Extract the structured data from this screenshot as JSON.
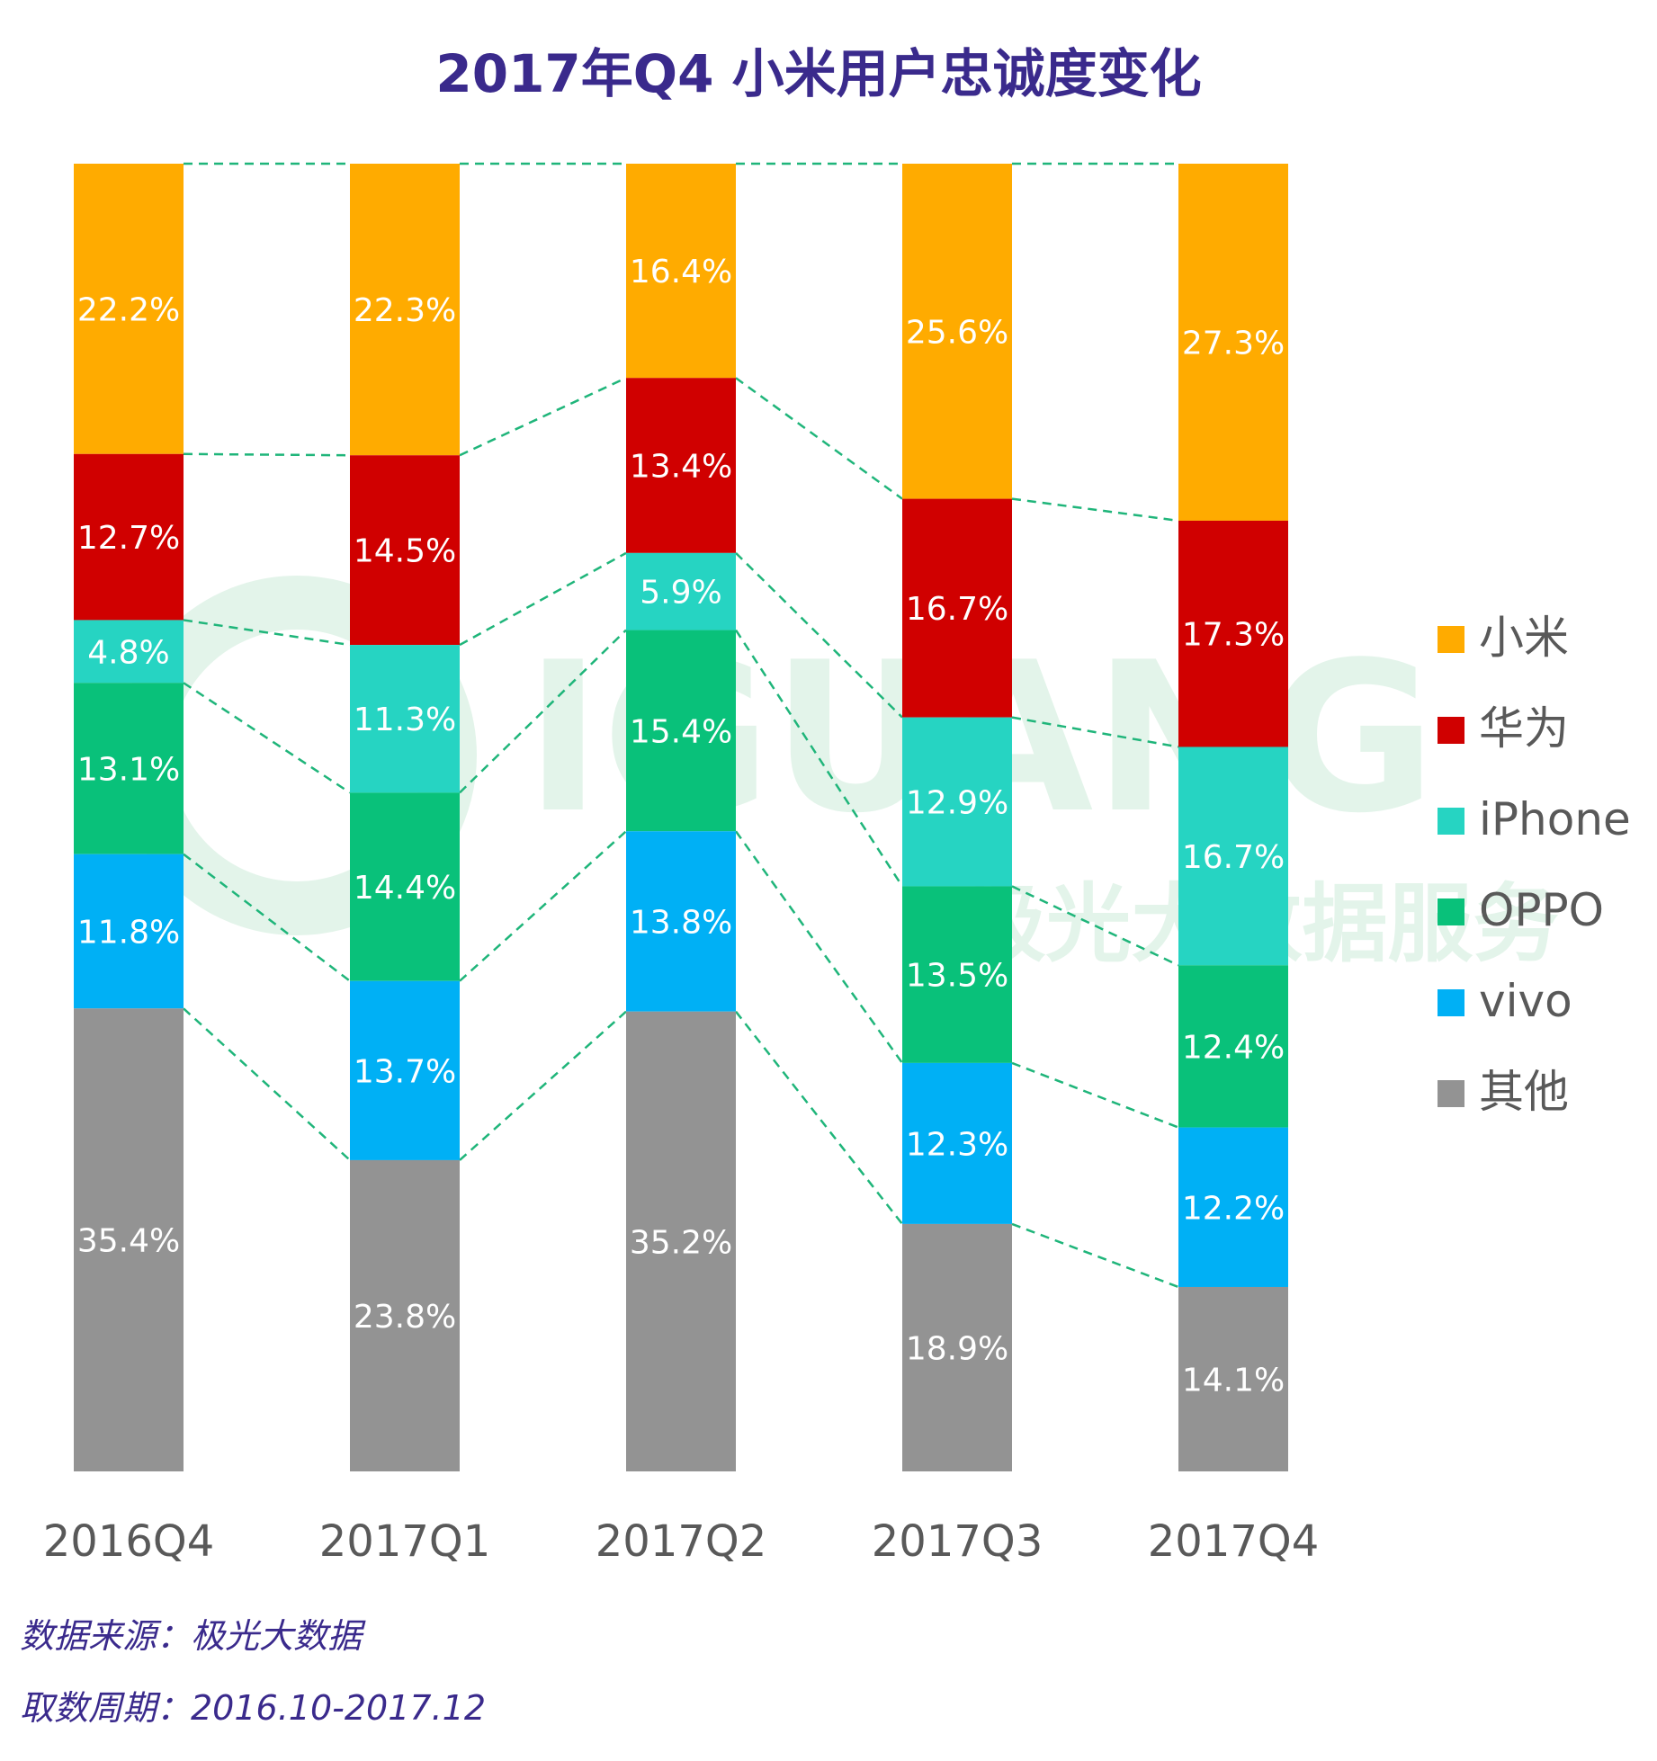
{
  "title": "2017年Q4 小米用户忠诚度变化",
  "watermark": {
    "brand": "IGUANG",
    "tagline": "极光大数据服务"
  },
  "footnotes": {
    "source": "数据来源：极光大数据",
    "period": "取数周期：2016.10-2017.12"
  },
  "colors": {
    "title": "#3a2a8c",
    "connector": "#1fb57a",
    "axis_label": "#595959",
    "bar_label": "#ffffff",
    "legend_text": "#595959",
    "watermark": "#e3f4ea"
  },
  "chart_data": {
    "type": "bar",
    "stacked": true,
    "normalized": true,
    "categories": [
      "2016Q4",
      "2017Q1",
      "2017Q2",
      "2017Q3",
      "2017Q4"
    ],
    "series": [
      {
        "name": "小米",
        "color": "#ffab00",
        "values": [
          22.2,
          22.3,
          16.4,
          25.6,
          27.3
        ]
      },
      {
        "name": "华为",
        "color": "#d00000",
        "values": [
          12.7,
          14.5,
          13.4,
          16.7,
          17.3
        ]
      },
      {
        "name": "iPhone",
        "color": "#26d4c2",
        "values": [
          4.8,
          11.3,
          5.9,
          12.9,
          16.7
        ]
      },
      {
        "name": "OPPO",
        "color": "#09c17a",
        "values": [
          13.1,
          14.4,
          15.4,
          13.5,
          12.4
        ]
      },
      {
        "name": "vivo",
        "color": "#00b0f5",
        "values": [
          11.8,
          13.7,
          13.8,
          12.3,
          12.2
        ]
      },
      {
        "name": "其他",
        "color": "#939393",
        "values": [
          35.4,
          23.8,
          35.2,
          18.9,
          14.1
        ]
      }
    ],
    "value_suffix": "%",
    "legend_position": "right",
    "grid": false,
    "connector_lines": "dashed"
  }
}
